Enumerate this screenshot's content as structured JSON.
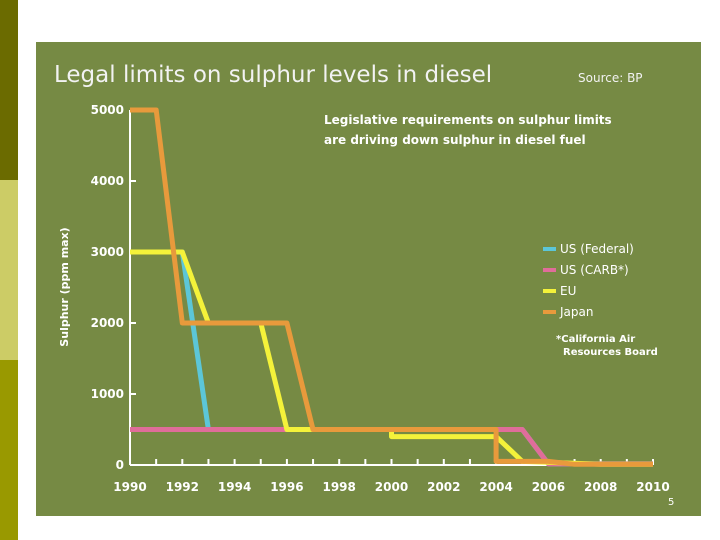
{
  "slide": {
    "page_number": "5"
  },
  "chart_data": {
    "type": "line",
    "title": "Legal limits on sulphur levels in diesel",
    "source": "Source: BP",
    "annotation_lines": [
      "Legislative requirements on sulphur limits",
      "are driving down sulphur in diesel fuel"
    ],
    "footnote_lines": [
      "*California Air",
      "Resources Board"
    ],
    "xlabel": "",
    "ylabel": "Sulphur (ppm max)",
    "xlim": [
      1990,
      2010
    ],
    "ylim": [
      0,
      5000
    ],
    "x_ticks": [
      1990,
      1992,
      1994,
      1996,
      1998,
      2000,
      2002,
      2004,
      2006,
      2008,
      2010
    ],
    "y_ticks": [
      0,
      1000,
      2000,
      3000,
      4000,
      5000
    ],
    "legend_position": "right",
    "colors": {
      "background": "#768a44",
      "axis": "#ffffff",
      "text": "#ffffff",
      "title": "#f2f2f2"
    },
    "series": [
      {
        "name": "US (Federal)",
        "color": "#5cc6d8",
        "points": [
          [
            1990,
            3000
          ],
          [
            1992,
            3000
          ],
          [
            1993,
            500
          ],
          [
            2005,
            500
          ],
          [
            2006,
            15
          ],
          [
            2010,
            15
          ]
        ]
      },
      {
        "name": "US (CARB*)",
        "color": "#e06d9a",
        "points": [
          [
            1990,
            500
          ],
          [
            2005,
            500
          ],
          [
            2006,
            15
          ],
          [
            2010,
            15
          ]
        ]
      },
      {
        "name": "EU",
        "color": "#f4f23a",
        "points": [
          [
            1990,
            3000
          ],
          [
            1992,
            3000
          ],
          [
            1993,
            2000
          ],
          [
            1995,
            2000
          ],
          [
            1996,
            500
          ],
          [
            2000,
            500
          ],
          [
            2000,
            400
          ],
          [
            2004,
            400
          ],
          [
            2005,
            50
          ],
          [
            2008,
            10
          ],
          [
            2010,
            10
          ]
        ]
      },
      {
        "name": "Japan",
        "color": "#e89a3c",
        "points": [
          [
            1990,
            5000
          ],
          [
            1991,
            5000
          ],
          [
            1992,
            2000
          ],
          [
            1996,
            2000
          ],
          [
            1997,
            500
          ],
          [
            2004,
            500
          ],
          [
            2004,
            50
          ],
          [
            2006,
            50
          ],
          [
            2007,
            10
          ],
          [
            2010,
            10
          ]
        ]
      }
    ]
  }
}
